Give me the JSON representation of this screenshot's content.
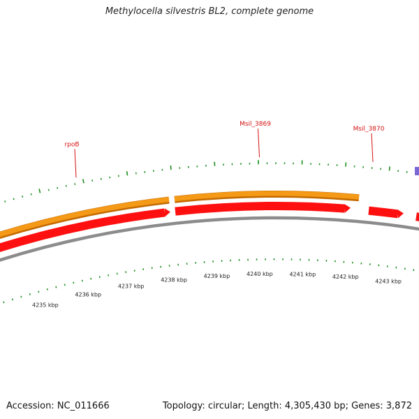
{
  "title": "Methylocella silvestris BL2, complete genome",
  "footer": {
    "accession": "Accession: NC_011666",
    "summary": "Topology: circular; Length: 4,305,430 bp; Genes: 3,872"
  },
  "colors": {
    "gene_forward": "#f59a16",
    "gene_forward_edge": "#c46a00",
    "cds": "#ff1010",
    "cds_edge": "#c00000",
    "backbone": "#8c8c8c",
    "ticks": "#1a8a1a",
    "label": "#d41010",
    "purple_feature": "#7b68d6"
  },
  "gene_labels": [
    {
      "name": "rpoB",
      "kbp": 4235.8
    },
    {
      "name": "Msil_3869",
      "kbp": 4240.0
    },
    {
      "name": "Msil_3870",
      "kbp": 4242.6
    }
  ],
  "kbp_labels": [
    "4235 kbp",
    "4236 kbp",
    "4237 kbp",
    "4238 kbp",
    "4239 kbp",
    "4240 kbp",
    "4241 kbp",
    "4242 kbp",
    "4243 kbp"
  ],
  "kbp_values": [
    4235,
    4236,
    4237,
    4238,
    4239,
    4240,
    4241,
    4242,
    4243
  ]
}
